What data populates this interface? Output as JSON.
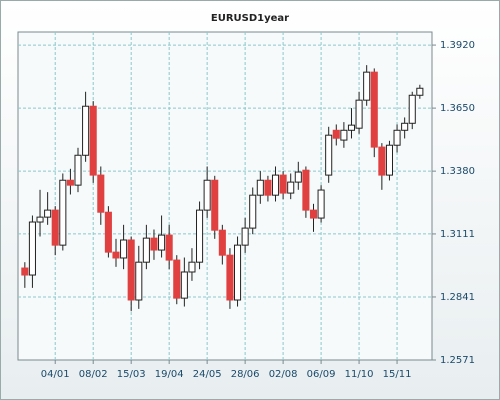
{
  "chart_data": {
    "type": "candlestick",
    "title": "EURUSD1year",
    "categories": [
      null,
      null,
      null,
      null,
      "04/01",
      null,
      null,
      null,
      null,
      "08/02",
      null,
      null,
      null,
      null,
      "15/03",
      null,
      null,
      null,
      null,
      "19/04",
      null,
      null,
      null,
      null,
      "24/05",
      null,
      null,
      null,
      null,
      "28/06",
      null,
      null,
      null,
      null,
      "02/08",
      null,
      null,
      null,
      null,
      "06/09",
      null,
      null,
      null,
      null,
      "11/10",
      null,
      null,
      null,
      null,
      "15/11",
      null,
      null,
      null
    ],
    "open": [
      1.2965,
      1.2935,
      1.3162,
      1.3183,
      1.3213,
      1.3063,
      1.3341,
      1.332,
      1.3448,
      1.3658,
      1.3363,
      1.3204,
      1.3033,
      1.3008,
      1.3085,
      1.2828,
      1.299,
      1.3093,
      1.3042,
      1.3106,
      1.2999,
      1.2836,
      1.2948,
      1.299,
      1.3213,
      1.3341,
      1.3127,
      1.302,
      1.2828,
      1.3063,
      1.3136,
      1.3277,
      1.3341,
      1.3277,
      1.3363,
      1.3286,
      1.3333,
      1.3384,
      1.3213,
      1.3179,
      1.3363,
      1.3555,
      1.3513,
      1.3555,
      1.3564,
      1.3684,
      1.3804,
      1.3483,
      1.3363,
      1.3491,
      1.3555,
      1.3585,
      1.3705
    ],
    "high": [
      1.299,
      1.319,
      1.33,
      1.329,
      1.323,
      1.337,
      1.339,
      1.348,
      1.372,
      1.368,
      1.34,
      1.323,
      1.309,
      1.315,
      1.31,
      1.306,
      1.315,
      1.313,
      1.319,
      1.315,
      1.302,
      1.301,
      1.305,
      1.325,
      1.34,
      1.336,
      1.315,
      1.305,
      1.31,
      1.318,
      1.331,
      1.338,
      1.336,
      1.34,
      1.338,
      1.337,
      1.342,
      1.34,
      1.324,
      1.332,
      1.357,
      1.358,
      1.359,
      1.365,
      1.372,
      1.3834,
      1.382,
      1.35,
      1.351,
      1.358,
      1.361,
      1.372,
      1.375
    ],
    "low": [
      1.288,
      1.288,
      1.31,
      1.315,
      1.302,
      1.304,
      1.328,
      1.329,
      1.342,
      1.333,
      1.315,
      1.301,
      1.297,
      1.296,
      1.278,
      1.279,
      1.296,
      1.3,
      1.301,
      1.296,
      1.281,
      1.28,
      1.291,
      1.296,
      1.318,
      1.309,
      1.298,
      1.279,
      1.28,
      1.303,
      1.311,
      1.324,
      1.325,
      1.325,
      1.326,
      1.326,
      1.33,
      1.318,
      1.312,
      1.316,
      1.333,
      1.349,
      1.348,
      1.352,
      1.354,
      1.366,
      1.344,
      1.33,
      1.334,
      1.346,
      1.352,
      1.356,
      1.369
    ],
    "close": [
      1.2935,
      1.3162,
      1.3183,
      1.3213,
      1.3063,
      1.3341,
      1.332,
      1.3448,
      1.3658,
      1.3363,
      1.3204,
      1.3033,
      1.3008,
      1.3085,
      1.2828,
      1.299,
      1.3093,
      1.3042,
      1.3106,
      1.2999,
      1.2836,
      1.2948,
      1.299,
      1.3213,
      1.3341,
      1.3127,
      1.302,
      1.2828,
      1.3063,
      1.3136,
      1.3277,
      1.3341,
      1.3277,
      1.3363,
      1.3286,
      1.3333,
      1.3376,
      1.3213,
      1.3179,
      1.3299,
      1.3534,
      1.3521,
      1.3555,
      1.3577,
      1.3684,
      1.3804,
      1.3483,
      1.3363,
      1.3491,
      1.3555,
      1.3585,
      1.3705,
      1.3735
    ],
    "up_color": "#ffffff",
    "down_color": "#e04040",
    "ylim": [
      1.2571,
      1.3976
    ],
    "yticks": [
      1.2571,
      1.2841,
      1.3111,
      {
        "value": 1.338,
        "label": "1.3380"
      },
      {
        "value": 1.365,
        "label": "1.3650"
      },
      {
        "value": 1.392,
        "label": "1.3920"
      }
    ],
    "grid": true
  }
}
